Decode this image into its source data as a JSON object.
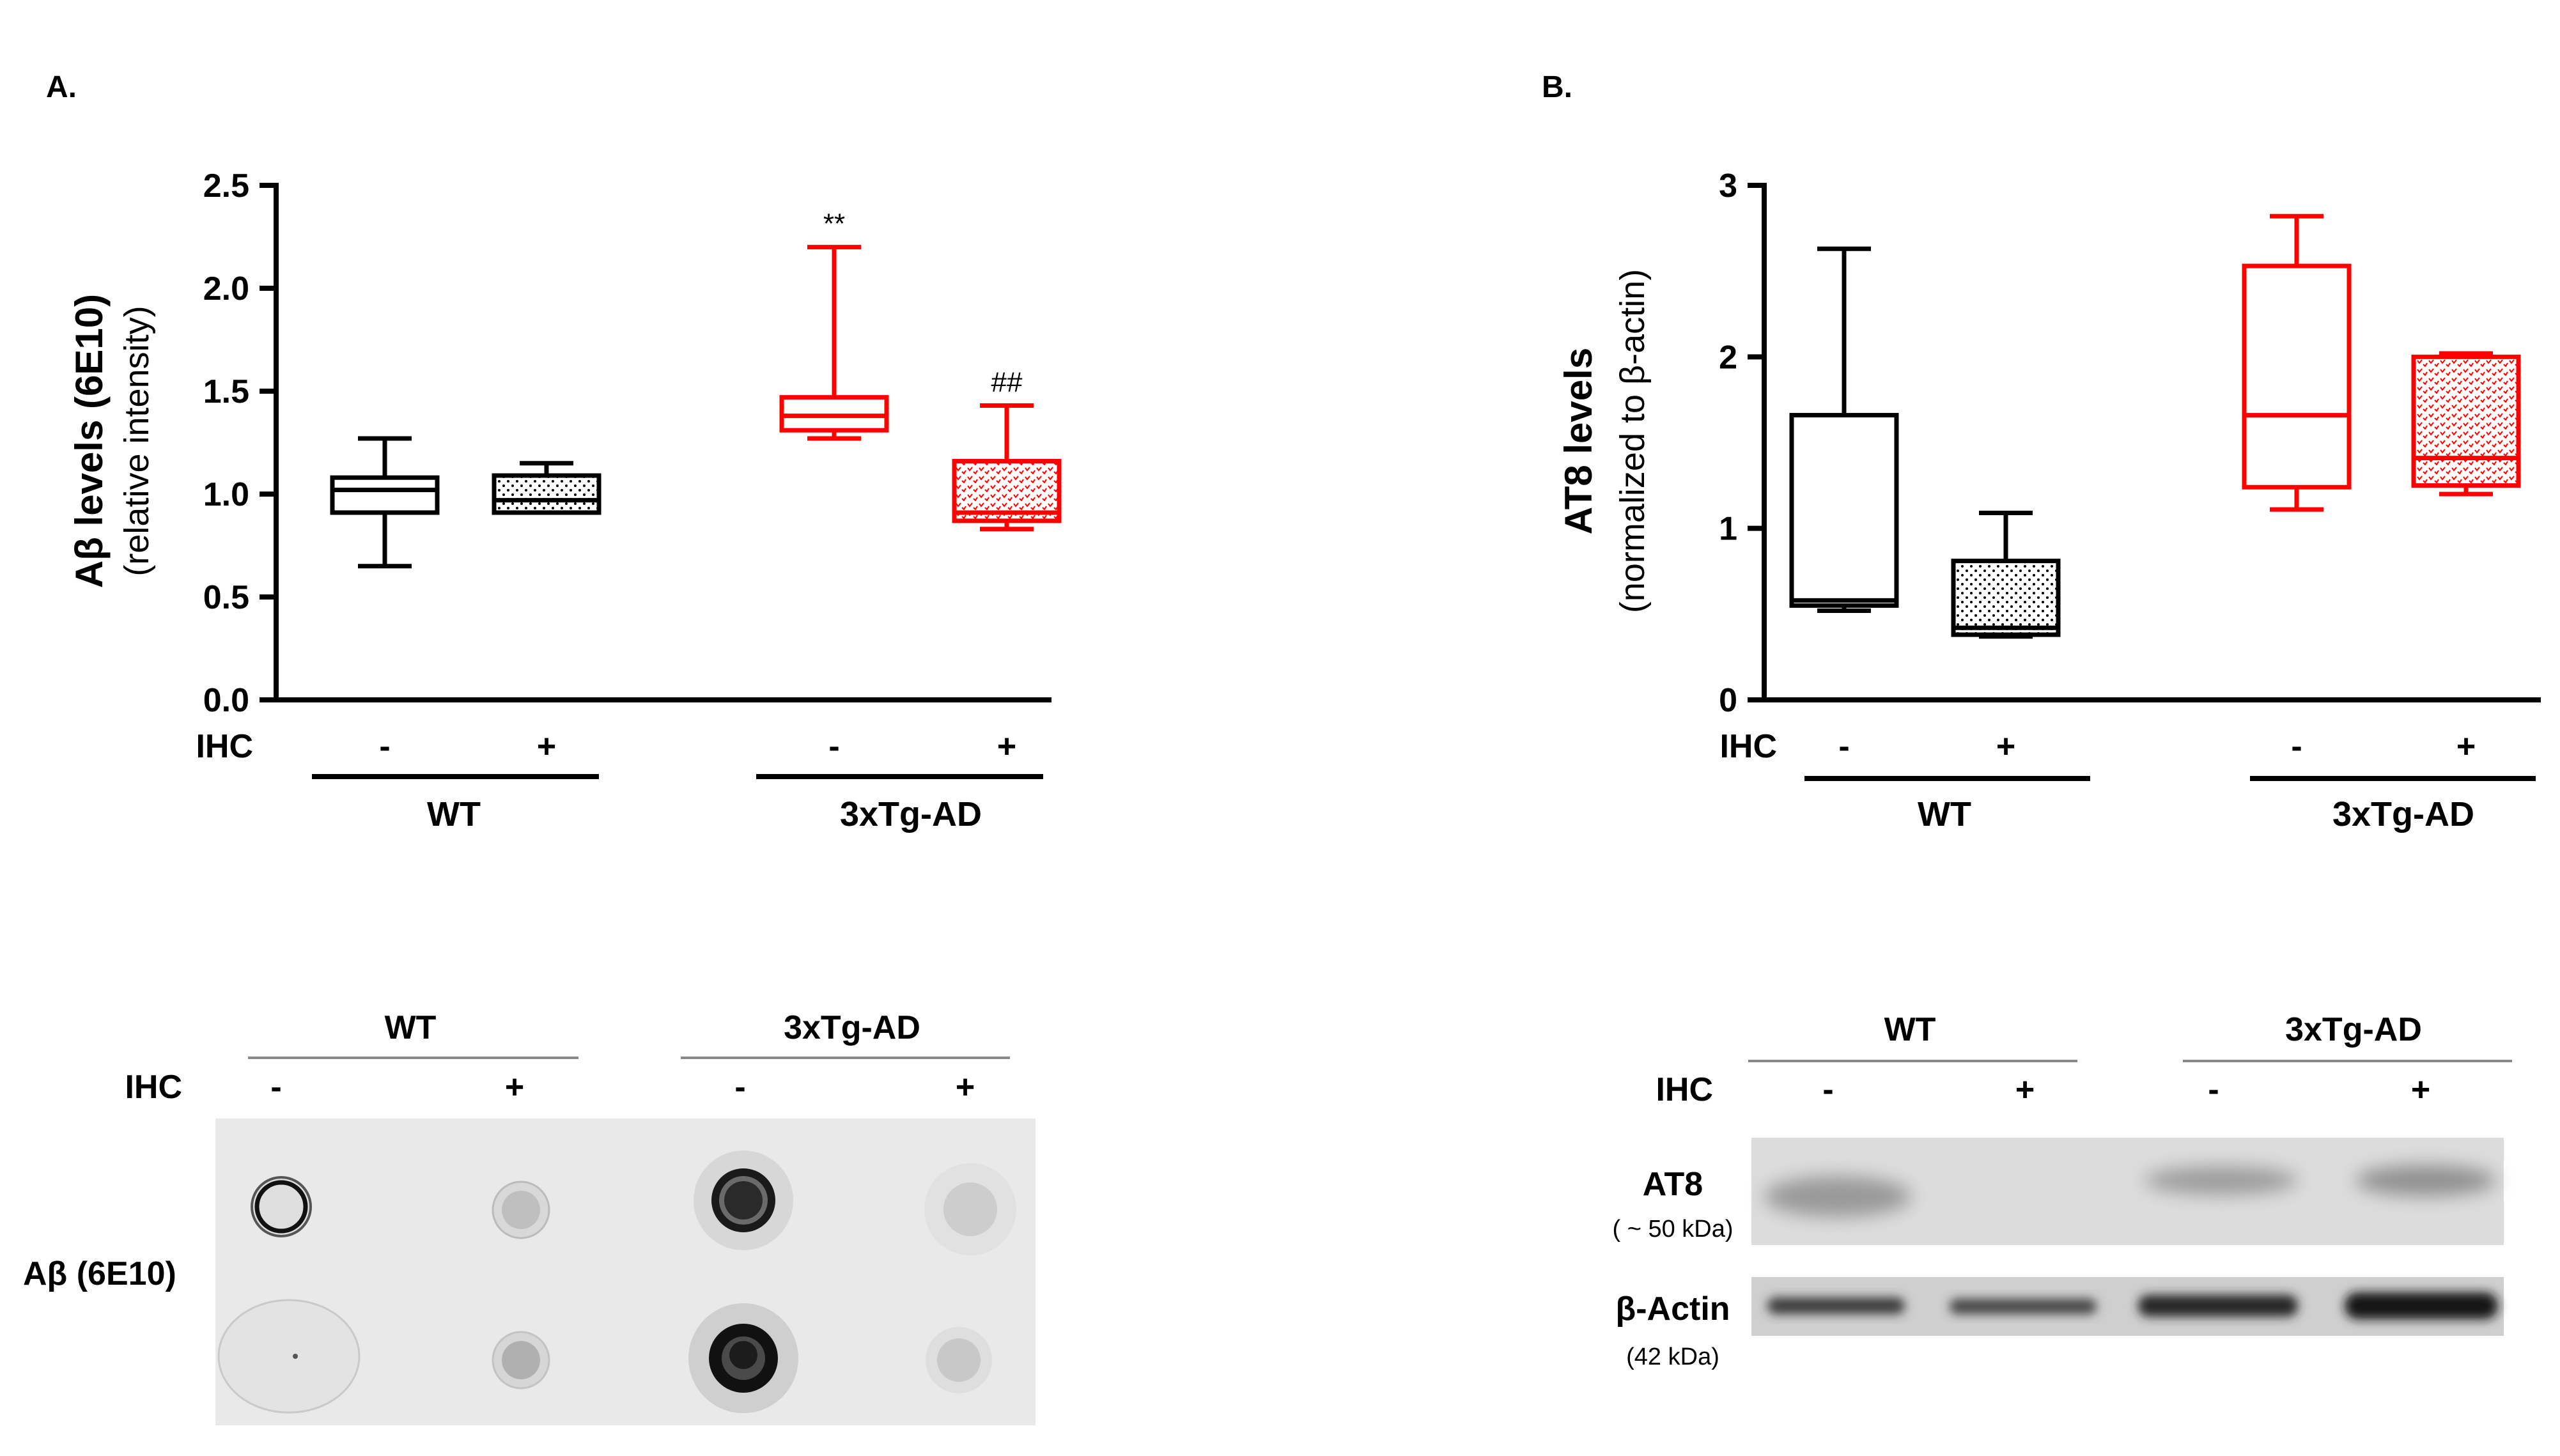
{
  "panel_a_label": "A.",
  "panel_b_label": "B.",
  "chart_data": [
    {
      "type": "box",
      "panel": "A.",
      "ylabel": "Aβ levels (6E10)",
      "ylabel_sub": "(relative intensity)",
      "ylim": [
        0,
        2.5
      ],
      "yticks": [
        0.0,
        0.5,
        1.0,
        1.5,
        2.0,
        2.5
      ],
      "ytick_labels": [
        "0.0",
        "0.5",
        "1.0",
        "1.5",
        "2.0",
        "2.5"
      ],
      "row_label": "IHC",
      "groups": [
        "WT",
        "3xTg-AD"
      ],
      "categories": [
        "-",
        "+",
        "-",
        "+"
      ],
      "boxes": [
        {
          "group": "WT",
          "ihc": "-",
          "min": 0.65,
          "q1": 0.91,
          "median": 1.02,
          "q3": 1.08,
          "max": 1.27,
          "color": "#000000",
          "pattern": "none",
          "annotation": ""
        },
        {
          "group": "WT",
          "ihc": "+",
          "min": 0.91,
          "q1": 0.91,
          "median": 0.97,
          "q3": 1.09,
          "max": 1.15,
          "color": "#000000",
          "pattern": "dots",
          "annotation": ""
        },
        {
          "group": "3xTg-AD",
          "ihc": "-",
          "min": 1.27,
          "q1": 1.31,
          "median": 1.38,
          "q3": 1.47,
          "max": 2.2,
          "color": "#ff0000",
          "pattern": "none",
          "annotation": "**"
        },
        {
          "group": "3xTg-AD",
          "ihc": "+",
          "min": 0.83,
          "q1": 0.87,
          "median": 0.91,
          "q3": 1.16,
          "max": 1.43,
          "color": "#ff0000",
          "pattern": "checks",
          "annotation": "##"
        }
      ]
    },
    {
      "type": "box",
      "panel": "B.",
      "ylabel": "AT8 levels",
      "ylabel_sub": "(normalized to β-actin)",
      "ylim": [
        0,
        3
      ],
      "yticks": [
        0,
        1,
        2,
        3
      ],
      "ytick_labels": [
        "0",
        "1",
        "2",
        "3"
      ],
      "row_label": "IHC",
      "groups": [
        "WT",
        "3xTg-AD"
      ],
      "categories": [
        "-",
        "+",
        "-",
        "+"
      ],
      "boxes": [
        {
          "group": "WT",
          "ihc": "-",
          "min": 0.52,
          "q1": 0.55,
          "median": 0.58,
          "q3": 1.66,
          "max": 2.63,
          "color": "#000000",
          "pattern": "none",
          "annotation": ""
        },
        {
          "group": "WT",
          "ihc": "+",
          "min": 0.37,
          "q1": 0.38,
          "median": 0.42,
          "q3": 0.81,
          "max": 1.09,
          "color": "#000000",
          "pattern": "dots",
          "annotation": ""
        },
        {
          "group": "3xTg-AD",
          "ihc": "-",
          "min": 1.11,
          "q1": 1.24,
          "median": 1.66,
          "q3": 2.53,
          "max": 2.82,
          "color": "#ff0000",
          "pattern": "none",
          "annotation": ""
        },
        {
          "group": "3xTg-AD",
          "ihc": "+",
          "min": 1.2,
          "q1": 1.25,
          "median": 1.41,
          "q3": 2.0,
          "max": 2.02,
          "color": "#ff0000",
          "pattern": "checks",
          "annotation": ""
        }
      ]
    }
  ],
  "dot_blot": {
    "groups": [
      "WT",
      "3xTg-AD"
    ],
    "row_label": "IHC",
    "signs": [
      "-",
      "+",
      "-",
      "+"
    ],
    "label": "Aβ (6E10)"
  },
  "western_blot": {
    "groups": [
      "WT",
      "3xTg-AD"
    ],
    "row_label": "IHC",
    "signs": [
      "-",
      "+",
      "-",
      "+"
    ],
    "band1_label": "AT8",
    "band1_sub": "( ~ 50 kDa)",
    "band2_label": "β-Actin",
    "band2_sub": "(42 kDa)"
  }
}
